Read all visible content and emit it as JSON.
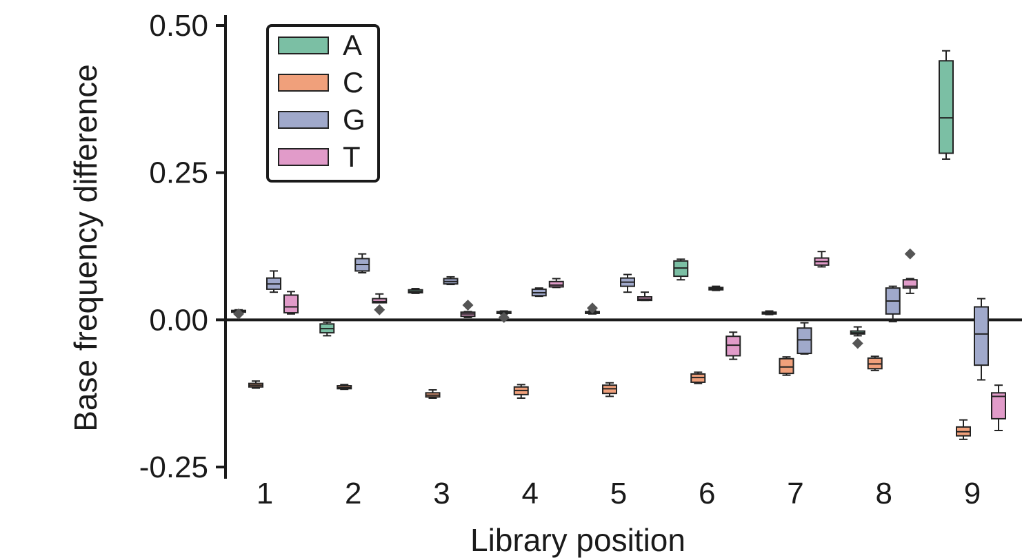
{
  "chart_data": {
    "type": "box",
    "xlabel": "Library position",
    "ylabel": "Base frequency difference",
    "ylim": [
      -0.25,
      0.5
    ],
    "yticks": [
      "0.50",
      "0.25",
      "0.00",
      "-0.25"
    ],
    "ytick_values": [
      0.5,
      0.25,
      0.0,
      -0.25
    ],
    "categories": [
      "1",
      "2",
      "3",
      "4",
      "5",
      "6",
      "7",
      "8",
      "9"
    ],
    "legend_position": "top-left",
    "reference_line": 0.0,
    "series": [
      {
        "name": "A",
        "color": "#7bbfa4",
        "boxes": [
          {
            "whislo": 0.012,
            "q1": 0.013,
            "med": 0.014,
            "q3": 0.016,
            "whishi": 0.017,
            "fliers": [
              0.01
            ]
          },
          {
            "whislo": -0.027,
            "q1": -0.022,
            "med": -0.015,
            "q3": -0.007,
            "whishi": -0.004,
            "fliers": []
          },
          {
            "whislo": 0.045,
            "q1": 0.046,
            "med": 0.048,
            "q3": 0.051,
            "whishi": 0.053,
            "fliers": []
          },
          {
            "whislo": 0.01,
            "q1": 0.011,
            "med": 0.012,
            "q3": 0.014,
            "whishi": 0.015,
            "fliers": [
              0.004
            ]
          },
          {
            "whislo": 0.01,
            "q1": 0.011,
            "med": 0.012,
            "q3": 0.014,
            "whishi": 0.015,
            "fliers": [
              0.02
            ]
          },
          {
            "whislo": 0.068,
            "q1": 0.074,
            "med": 0.088,
            "q3": 0.1,
            "whishi": 0.103,
            "fliers": []
          },
          {
            "whislo": 0.009,
            "q1": 0.01,
            "med": 0.011,
            "q3": 0.013,
            "whishi": 0.015,
            "fliers": []
          },
          {
            "whislo": -0.027,
            "q1": -0.024,
            "med": -0.022,
            "q3": -0.019,
            "whishi": -0.012,
            "fliers": [
              -0.04
            ]
          },
          {
            "whislo": 0.273,
            "q1": 0.283,
            "med": 0.343,
            "q3": 0.44,
            "whishi": 0.457,
            "fliers": []
          }
        ]
      },
      {
        "name": "C",
        "color": "#f0a07b",
        "boxes": [
          {
            "whislo": -0.116,
            "q1": -0.114,
            "med": -0.111,
            "q3": -0.108,
            "whishi": -0.104,
            "fliers": []
          },
          {
            "whislo": -0.118,
            "q1": -0.117,
            "med": -0.115,
            "q3": -0.112,
            "whishi": -0.11,
            "fliers": []
          },
          {
            "whislo": -0.133,
            "q1": -0.131,
            "med": -0.128,
            "q3": -0.124,
            "whishi": -0.119,
            "fliers": []
          },
          {
            "whislo": -0.133,
            "q1": -0.127,
            "med": -0.12,
            "q3": -0.114,
            "whishi": -0.11,
            "fliers": []
          },
          {
            "whislo": -0.13,
            "q1": -0.125,
            "med": -0.117,
            "q3": -0.111,
            "whishi": -0.107,
            "fliers": []
          },
          {
            "whislo": -0.108,
            "q1": -0.106,
            "med": -0.098,
            "q3": -0.092,
            "whishi": -0.089,
            "fliers": []
          },
          {
            "whislo": -0.094,
            "q1": -0.091,
            "med": -0.08,
            "q3": -0.066,
            "whishi": -0.063,
            "fliers": []
          },
          {
            "whislo": -0.086,
            "q1": -0.083,
            "med": -0.075,
            "q3": -0.065,
            "whishi": -0.062,
            "fliers": []
          },
          {
            "whislo": -0.203,
            "q1": -0.197,
            "med": -0.19,
            "q3": -0.182,
            "whishi": -0.17,
            "fliers": []
          }
        ]
      },
      {
        "name": "G",
        "color": "#a0a9cb",
        "boxes": [
          {
            "whislo": 0.047,
            "q1": 0.052,
            "med": 0.061,
            "q3": 0.071,
            "whishi": 0.083,
            "fliers": []
          },
          {
            "whislo": 0.08,
            "q1": 0.083,
            "med": 0.094,
            "q3": 0.104,
            "whishi": 0.112,
            "fliers": []
          },
          {
            "whislo": 0.06,
            "q1": 0.061,
            "med": 0.065,
            "q3": 0.07,
            "whishi": 0.073,
            "fliers": []
          },
          {
            "whislo": 0.04,
            "q1": 0.041,
            "med": 0.046,
            "q3": 0.052,
            "whishi": 0.054,
            "fliers": []
          },
          {
            "whislo": 0.047,
            "q1": 0.057,
            "med": 0.064,
            "q3": 0.071,
            "whishi": 0.077,
            "fliers": []
          },
          {
            "whislo": 0.05,
            "q1": 0.051,
            "med": 0.053,
            "q3": 0.055,
            "whishi": 0.057,
            "fliers": []
          },
          {
            "whislo": -0.058,
            "q1": -0.057,
            "med": -0.034,
            "q3": -0.014,
            "whishi": -0.005,
            "fliers": []
          },
          {
            "whislo": -0.003,
            "q1": 0.01,
            "med": 0.032,
            "q3": 0.054,
            "whishi": 0.057,
            "fliers": []
          },
          {
            "whislo": -0.102,
            "q1": -0.077,
            "med": -0.024,
            "q3": 0.022,
            "whishi": 0.036,
            "fliers": []
          }
        ]
      },
      {
        "name": "T",
        "color": "#e19bc9",
        "boxes": [
          {
            "whislo": 0.01,
            "q1": 0.012,
            "med": 0.022,
            "q3": 0.042,
            "whishi": 0.048,
            "fliers": []
          },
          {
            "whislo": 0.029,
            "q1": 0.029,
            "med": 0.031,
            "q3": 0.036,
            "whishi": 0.044,
            "fliers": [
              0.017
            ]
          },
          {
            "whislo": 0.004,
            "q1": 0.006,
            "med": 0.01,
            "q3": 0.013,
            "whishi": 0.014,
            "fliers": [
              0.025
            ]
          },
          {
            "whislo": 0.055,
            "q1": 0.056,
            "med": 0.059,
            "q3": 0.065,
            "whishi": 0.07,
            "fliers": []
          },
          {
            "whislo": 0.033,
            "q1": 0.033,
            "med": 0.035,
            "q3": 0.039,
            "whishi": 0.047,
            "fliers": []
          },
          {
            "whislo": -0.067,
            "q1": -0.061,
            "med": -0.043,
            "q3": -0.028,
            "whishi": -0.021,
            "fliers": []
          },
          {
            "whislo": 0.09,
            "q1": 0.093,
            "med": 0.099,
            "q3": 0.105,
            "whishi": 0.116,
            "fliers": []
          },
          {
            "whislo": 0.045,
            "q1": 0.054,
            "med": 0.057,
            "q3": 0.068,
            "whishi": 0.07,
            "fliers": [
              0.112
            ]
          },
          {
            "whislo": -0.188,
            "q1": -0.168,
            "med": -0.13,
            "q3": -0.124,
            "whishi": -0.111,
            "fliers": []
          }
        ]
      }
    ]
  }
}
